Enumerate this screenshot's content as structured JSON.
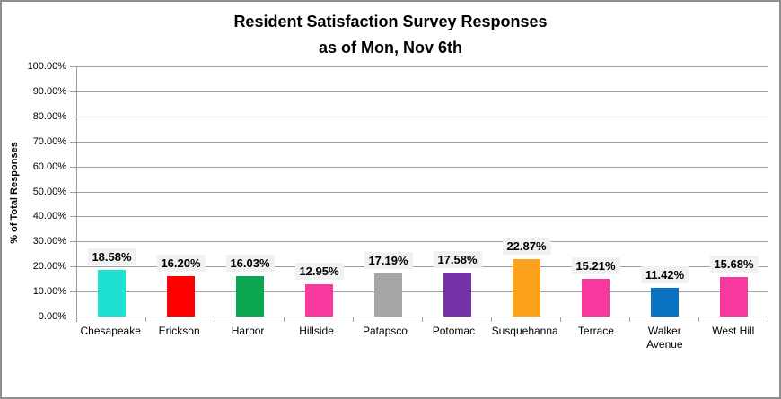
{
  "title": {
    "line1": "Resident Satisfaction Survey Responses",
    "line2": "as of Mon, Nov 6th"
  },
  "y_axis": {
    "label": "% of Total Responses",
    "ticks": [
      "100.00%",
      "90.00%",
      "80.00%",
      "70.00%",
      "60.00%",
      "50.00%",
      "40.00%",
      "30.00%",
      "20.00%",
      "10.00%",
      "0.00%"
    ]
  },
  "chart_data": {
    "type": "bar",
    "title": "Resident Satisfaction Survey Responses as of Mon, Nov 6th",
    "categories": [
      "Chesapeake",
      "Erickson",
      "Harbor",
      "Hillside",
      "Patapsco",
      "Potomac",
      "Susquehanna",
      "Terrace",
      "Walker Avenue",
      "West Hill"
    ],
    "values": [
      18.58,
      16.2,
      16.03,
      12.95,
      17.19,
      17.58,
      22.87,
      15.21,
      11.42,
      15.68
    ],
    "value_labels": [
      "18.58%",
      "16.20%",
      "16.03%",
      "12.95%",
      "17.19%",
      "17.58%",
      "22.87%",
      "15.21%",
      "11.42%",
      "15.68%"
    ],
    "bar_colors": [
      "#1EE1D2",
      "#FE0000",
      "#0AA650",
      "#F8389E",
      "#A6A6A6",
      "#7633A8",
      "#FCA21D",
      "#F8389E",
      "#0B74C2",
      "#F8389E"
    ],
    "xlabel": "",
    "ylabel": "% of Total Responses",
    "ylim": [
      0,
      100
    ],
    "ytick_step": 10,
    "grid": true,
    "legend": false
  },
  "colors": {
    "grid": "#9D9D9D",
    "axis": "#9D9D9D",
    "border": "#8F8F8F",
    "labelbox": "#F1F1F1",
    "text": "#000000",
    "background": "#FFFFFF"
  }
}
